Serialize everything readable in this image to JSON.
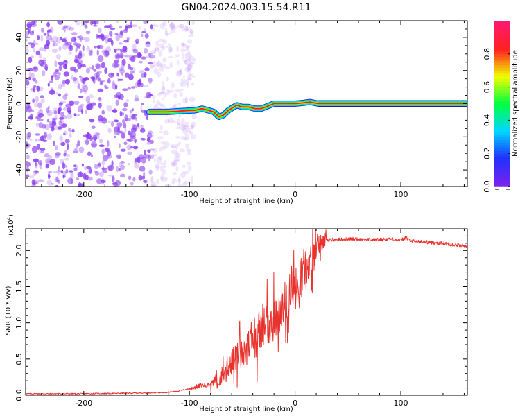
{
  "title": "GN04.2024.003.15.54.R11",
  "colors": {
    "spectrogram_noise": "#8a3cf0",
    "snr_line": "#e8322e",
    "colormap": [
      "#ffffff",
      "#c9a8f5",
      "#7a22ee",
      "#2030ff",
      "#00d8ff",
      "#00ff40",
      "#f0ff00",
      "#ff2020",
      "#ff1a70"
    ]
  },
  "chart_data": [
    {
      "type": "heatmap",
      "panel": "spectrogram",
      "xlabel": "Height of straight line (km)",
      "ylabel": "Frequency (Hz)",
      "xlim": [
        -255,
        163
      ],
      "ylim": [
        -50,
        50
      ],
      "x_ticks": [
        -200,
        -100,
        0,
        100
      ],
      "y_ticks": [
        -40,
        -20,
        0,
        20,
        40
      ],
      "grid": false,
      "noise_region_x": [
        -255,
        -125
      ],
      "ridge": [
        {
          "x": -138,
          "y": -5
        },
        {
          "x": -130,
          "y": -5
        },
        {
          "x": -120,
          "y": -5
        },
        {
          "x": -110,
          "y": -4.5
        },
        {
          "x": -95,
          "y": -4
        },
        {
          "x": -88,
          "y": -3
        },
        {
          "x": -82,
          "y": -4
        },
        {
          "x": -77,
          "y": -5
        },
        {
          "x": -72,
          "y": -8
        },
        {
          "x": -68,
          "y": -7
        },
        {
          "x": -63,
          "y": -4
        },
        {
          "x": -58,
          "y": -2
        },
        {
          "x": -55,
          "y": -1
        },
        {
          "x": -50,
          "y": -2
        },
        {
          "x": -44,
          "y": -2
        },
        {
          "x": -38,
          "y": -3
        },
        {
          "x": -32,
          "y": -3
        },
        {
          "x": -28,
          "y": -2
        },
        {
          "x": -24,
          "y": -1
        },
        {
          "x": -20,
          "y": 0
        },
        {
          "x": -10,
          "y": 0
        },
        {
          "x": 0,
          "y": 0
        },
        {
          "x": 8,
          "y": 0.5
        },
        {
          "x": 14,
          "y": 1
        },
        {
          "x": 22,
          "y": 0
        },
        {
          "x": 163,
          "y": 0
        }
      ],
      "colorbar": {
        "label": "Normalized spectral amplitude",
        "range": [
          0,
          1
        ],
        "ticks": [
          "0.0",
          "0.2",
          "0.4",
          "0.6",
          "0.8"
        ]
      }
    },
    {
      "type": "line",
      "panel": "snr",
      "xlabel": "Height of straight line (km)",
      "ylabel": "SNR (10 * v/v)",
      "y_scale_label": "(x10",
      "y_scale_exponent": "4",
      "xlim": [
        -255,
        163
      ],
      "ylim": [
        0,
        2.3
      ],
      "x_ticks": [
        -200,
        -100,
        0,
        100
      ],
      "y_ticks": [
        "0.0",
        "0.5",
        "1.0",
        "1.5",
        "2.0"
      ],
      "grid": false,
      "series": [
        {
          "x": [
            -255,
            -200,
            -150,
            -120,
            -110,
            -100,
            -90,
            -80,
            -75,
            -70,
            -65,
            -60,
            -55,
            -50,
            -45,
            -40,
            -35,
            -30,
            -25,
            -20,
            -15,
            -10,
            -5,
            0,
            5,
            10,
            15,
            20,
            25,
            30,
            40,
            50,
            60,
            70,
            80,
            90,
            100,
            105,
            110,
            120,
            130,
            140,
            150,
            163
          ],
          "y": [
            0.02,
            0.02,
            0.03,
            0.04,
            0.06,
            0.09,
            0.13,
            0.15,
            0.2,
            0.25,
            0.38,
            0.45,
            0.55,
            0.6,
            0.68,
            0.78,
            0.85,
            0.95,
            1.02,
            1.08,
            1.12,
            1.25,
            1.38,
            1.45,
            1.6,
            1.75,
            1.9,
            2.08,
            2.14,
            2.15,
            2.15,
            2.16,
            2.16,
            2.15,
            2.15,
            2.16,
            2.14,
            2.18,
            2.13,
            2.12,
            2.11,
            2.1,
            2.08,
            2.06
          ]
        }
      ]
    }
  ]
}
